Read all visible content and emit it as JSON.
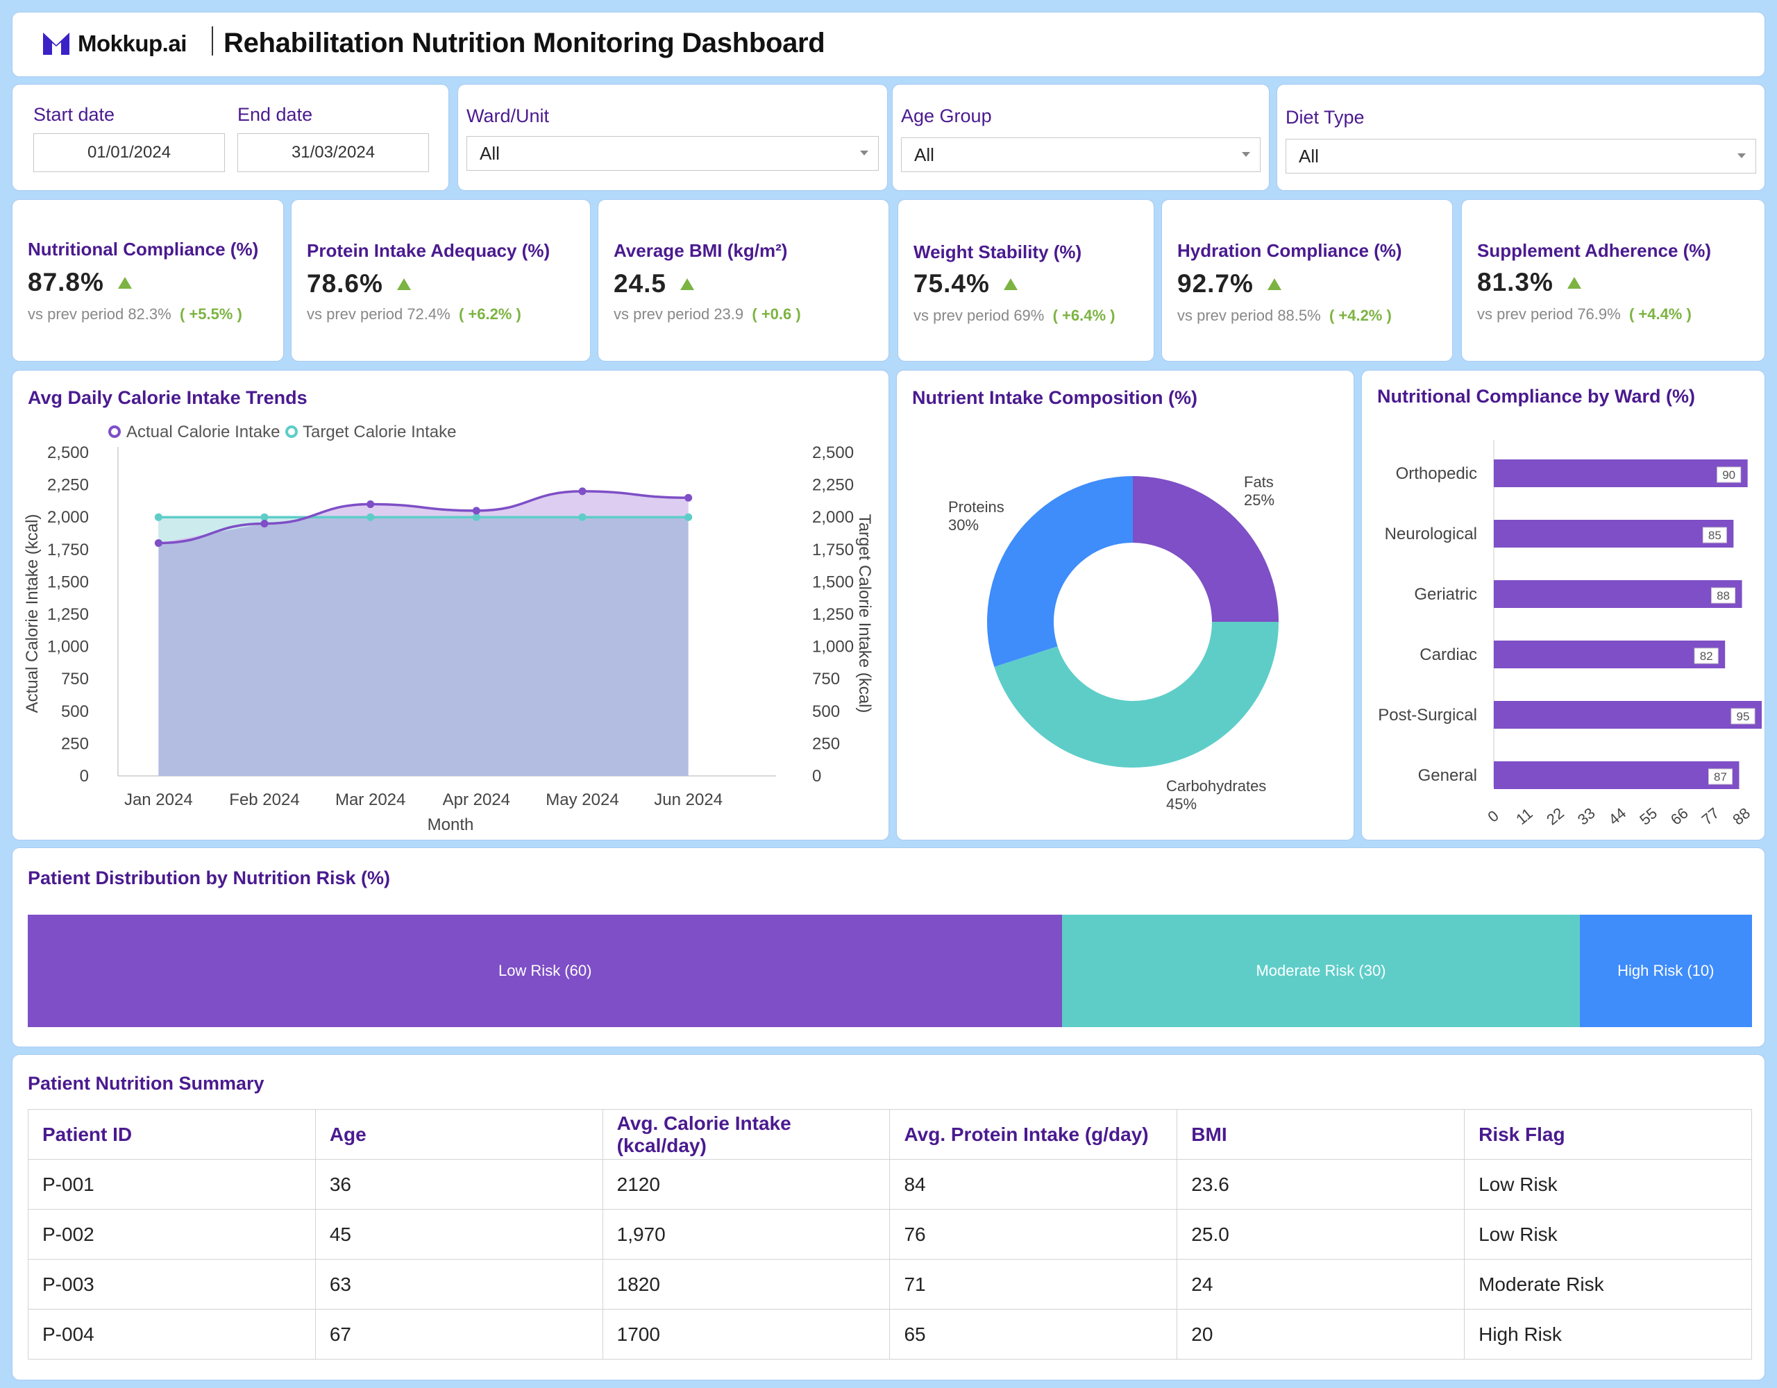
{
  "header": {
    "logo_text": "Mokkup.ai",
    "title": "Rehabilitation Nutrition Monitoring Dashboard"
  },
  "filters": {
    "start_date_label": "Start date",
    "start_date_value": "01/01/2024",
    "end_date_label": "End date",
    "end_date_value": "31/03/2024",
    "ward_label": "Ward/Unit",
    "ward_value": "All",
    "age_label": "Age Group",
    "age_value": "All",
    "diet_label": "Diet Type",
    "diet_value": "All"
  },
  "kpis": [
    {
      "title": "Nutritional Compliance (%)",
      "value": "87.8%",
      "prev_label": "vs prev period",
      "prev_value": "82.3%",
      "change": "( +5.5% )"
    },
    {
      "title": "Protein Intake Adequacy (%)",
      "value": "78.6%",
      "prev_label": "vs prev period",
      "prev_value": "72.4%",
      "change": "( +6.2% )"
    },
    {
      "title": "Average BMI (kg/m²)",
      "value": "24.5",
      "prev_label": "vs prev period",
      "prev_value": "23.9",
      "change": "( +0.6 )"
    },
    {
      "title": "Weight Stability (%)",
      "value": "75.4%",
      "prev_label": "vs prev period",
      "prev_value": "69%",
      "change": "( +6.4% )"
    },
    {
      "title": "Hydration Compliance (%)",
      "value": "92.7%",
      "prev_label": "vs prev period",
      "prev_value": "88.5%",
      "change": "( +4.2% )"
    },
    {
      "title": "Supplement Adherence (%)",
      "value": "81.3%",
      "prev_label": "vs prev period",
      "prev_value": "76.9%",
      "change": "( +4.4% )"
    }
  ],
  "colors": {
    "purple": "#7e4fc6",
    "teal": "#5ecdc8",
    "blue": "#3f8cfb",
    "title_purple": "#4a1a8f",
    "up_green": "#7cb342"
  },
  "line_chart": {
    "title": "Avg Daily Calorie Intake Trends",
    "legend_actual": "Actual Calorie Intake",
    "legend_target": "Target Calorie Intake",
    "xlabel": "Month",
    "ylabel_left": "Actual Calorie Intake (kcal)",
    "ylabel_right": "Target Calorie Intake (kcal)"
  },
  "donut_chart": {
    "title": "Nutrient Intake Composition (%)"
  },
  "bar_chart": {
    "title": "Nutritional Compliance by Ward (%)"
  },
  "risk": {
    "title": "Patient Distribution by Nutrition Risk (%)",
    "segments": [
      {
        "label": "Low Risk (60)",
        "value": 60
      },
      {
        "label": "Moderate Risk (30)",
        "value": 30
      },
      {
        "label": "High Risk (10)",
        "value": 10
      }
    ]
  },
  "table": {
    "title": "Patient Nutrition Summary",
    "headers": [
      "Patient ID",
      "Age",
      "Avg. Calorie Intake (kcal/day)",
      "Avg. Protein Intake (g/day)",
      "BMI",
      "Risk Flag"
    ],
    "rows": [
      [
        "P-001",
        "36",
        "2120",
        "84",
        "23.6",
        "Low Risk"
      ],
      [
        "P-002",
        "45",
        "1,970",
        "76",
        "25.0",
        "Low Risk"
      ],
      [
        "P-003",
        "63",
        "1820",
        "71",
        "24",
        "Moderate Risk"
      ],
      [
        "P-004",
        "67",
        "1700",
        "65",
        "20",
        "High Risk"
      ]
    ]
  },
  "chart_data": [
    {
      "type": "area",
      "title": "Avg Daily Calorie Intake Trends",
      "xlabel": "Month",
      "ylabel": "Actual Calorie Intake (kcal)",
      "y2label": "Target Calorie Intake (kcal)",
      "categories": [
        "Jan 2024",
        "Feb 2024",
        "Mar 2024",
        "Apr 2024",
        "May 2024",
        "Jun 2024"
      ],
      "series": [
        {
          "name": "Actual Calorie Intake",
          "values": [
            1800,
            1950,
            2100,
            2050,
            2200,
            2150
          ]
        },
        {
          "name": "Target Calorie Intake",
          "values": [
            2000,
            2000,
            2000,
            2000,
            2000,
            2000
          ]
        }
      ],
      "ylim": [
        0,
        2500
      ],
      "yticks": [
        "0",
        "250",
        "500",
        "750",
        "1,000",
        "1,250",
        "1,500",
        "1,750",
        "2,000",
        "2,250",
        "2,500"
      ],
      "legend": "top-left"
    },
    {
      "type": "pie",
      "title": "Nutrient Intake Composition (%)",
      "categories": [
        "Fats",
        "Carbohydrates",
        "Proteins"
      ],
      "values": [
        25,
        45,
        30
      ],
      "value_labels": [
        "25%",
        "45%",
        "30%"
      ]
    },
    {
      "type": "bar",
      "orientation": "horizontal",
      "title": "Nutritional Compliance by Ward (%)",
      "categories": [
        "Orthopedic",
        "Neurological",
        "Geriatric",
        "Cardiac",
        "Post-Surgical",
        "General"
      ],
      "values": [
        90,
        85,
        88,
        82,
        95,
        87
      ],
      "xlim": [
        0,
        95
      ],
      "xticks": [
        "0",
        "11",
        "22",
        "33",
        "44",
        "55",
        "66",
        "77",
        "88"
      ]
    },
    {
      "type": "bar",
      "orientation": "stacked-horizontal",
      "title": "Patient Distribution by Nutrition Risk (%)",
      "categories": [
        "Low Risk",
        "Moderate Risk",
        "High Risk"
      ],
      "values": [
        60,
        30,
        10
      ]
    }
  ]
}
